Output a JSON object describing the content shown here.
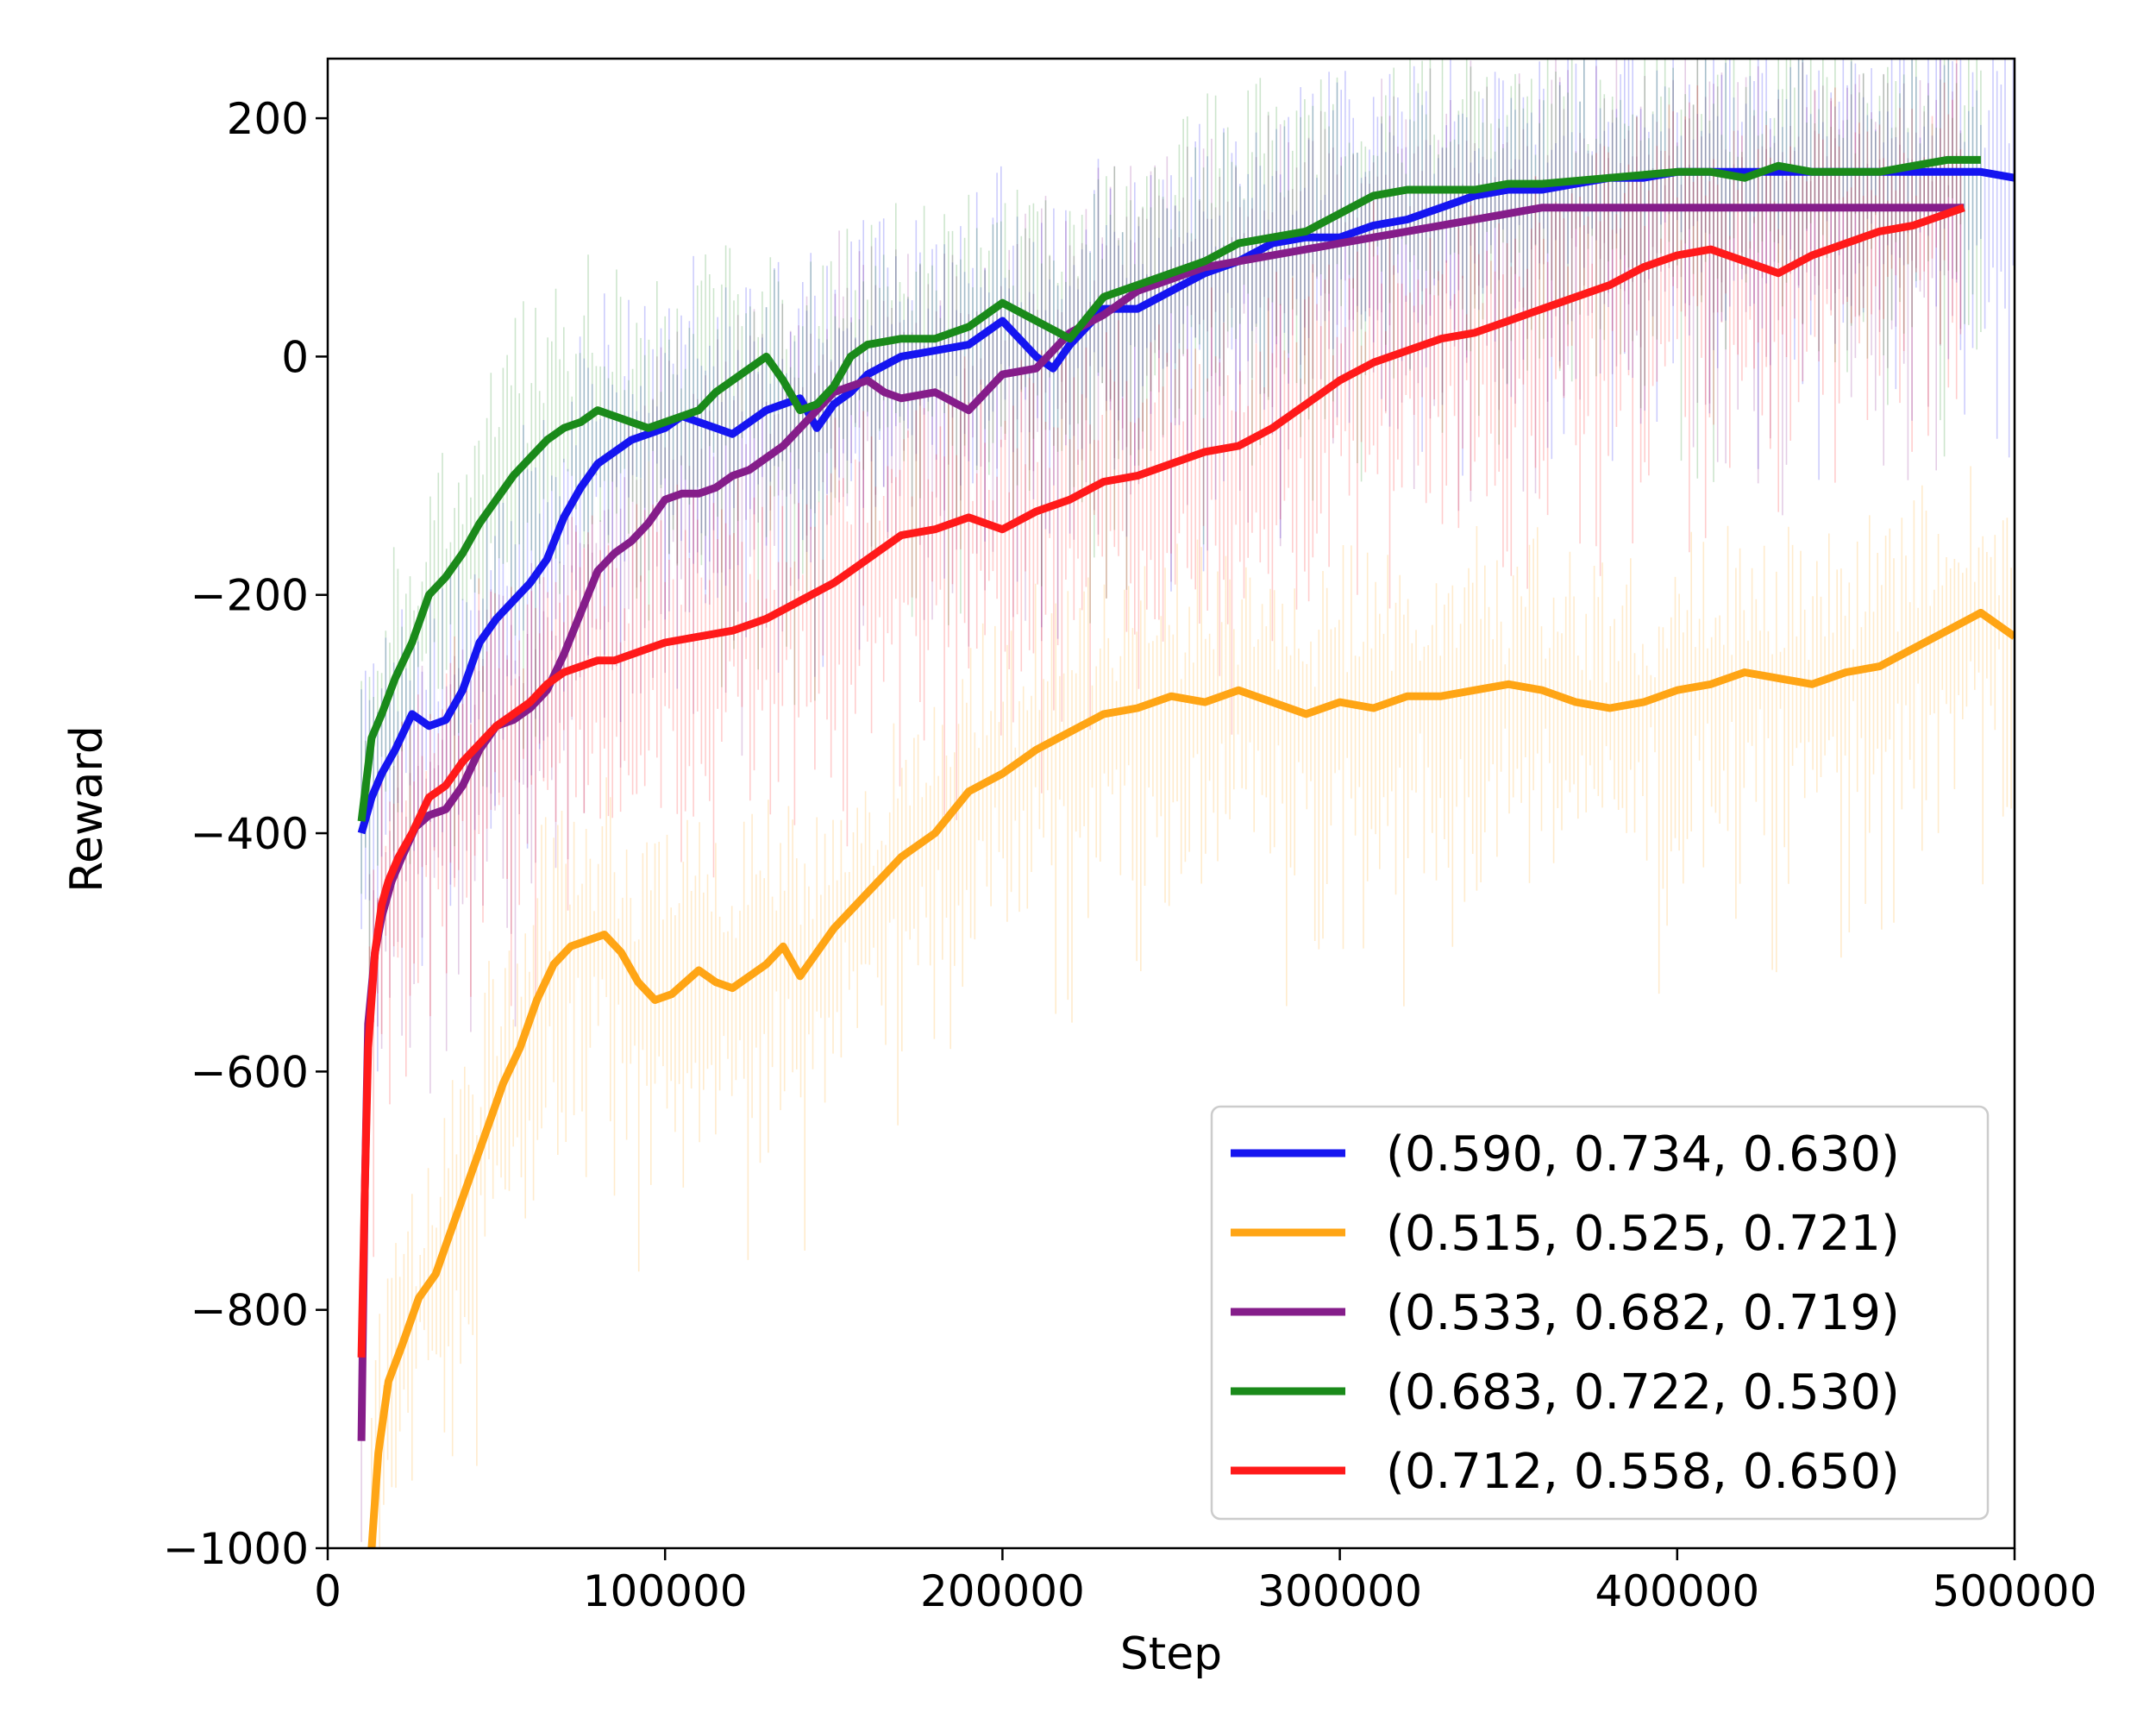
{
  "chart_data": {
    "type": "line",
    "title": "",
    "xlabel": "Step",
    "ylabel": "Reward",
    "xlim": [
      0,
      500000
    ],
    "ylim": [
      -1000,
      250
    ],
    "x_ticks": [
      0,
      100000,
      200000,
      300000,
      400000,
      500000
    ],
    "x_tick_labels": [
      "0",
      "100000",
      "200000",
      "300000",
      "400000",
      "500000"
    ],
    "y_ticks": [
      -1000,
      -800,
      -600,
      -400,
      -200,
      0,
      200
    ],
    "y_tick_labels": [
      "−1000",
      "−800",
      "−600",
      "−400",
      "−200",
      "0",
      "200"
    ],
    "grid": false,
    "legend_position": "bottom-right",
    "series": [
      {
        "name": "(0.590, 0.734, 0.630)",
        "color": "#1515f0",
        "x": [
          10000,
          13000,
          16000,
          20000,
          25000,
          30000,
          35000,
          40000,
          45000,
          50000,
          55000,
          60000,
          65000,
          70000,
          75000,
          80000,
          85000,
          90000,
          95000,
          100000,
          105000,
          110000,
          115000,
          120000,
          125000,
          130000,
          140000,
          145000,
          150000,
          155000,
          160000,
          170000,
          180000,
          190000,
          200000,
          205000,
          210000,
          215000,
          220000,
          230000,
          240000,
          250000,
          260000,
          270000,
          280000,
          290000,
          300000,
          310000,
          320000,
          330000,
          340000,
          350000,
          360000,
          370000,
          380000,
          390000,
          400000,
          420000,
          440000,
          460000,
          480000,
          490000,
          500000
        ],
        "y": [
          -400,
          -370,
          -350,
          -330,
          -300,
          -310,
          -305,
          -280,
          -240,
          -220,
          -205,
          -190,
          -170,
          -135,
          -110,
          -90,
          -80,
          -70,
          -65,
          -60,
          -50,
          -55,
          -60,
          -65,
          -55,
          -45,
          -35,
          -60,
          -40,
          -30,
          -15,
          0,
          5,
          10,
          30,
          15,
          0,
          -10,
          10,
          40,
          40,
          55,
          70,
          80,
          95,
          100,
          100,
          110,
          115,
          125,
          135,
          140,
          140,
          145,
          150,
          150,
          155,
          155,
          155,
          155,
          155,
          155,
          150
        ]
      },
      {
        "name": "(0.515, 0.525, 0.721)",
        "color": "#ffa515",
        "x": [
          13000,
          15000,
          18000,
          22000,
          27000,
          32000,
          37000,
          42000,
          47000,
          52000,
          57000,
          62000,
          67000,
          72000,
          77000,
          82000,
          87000,
          92000,
          97000,
          102000,
          110000,
          115000,
          120000,
          130000,
          135000,
          140000,
          150000,
          160000,
          170000,
          180000,
          190000,
          200000,
          210000,
          220000,
          230000,
          240000,
          250000,
          260000,
          270000,
          280000,
          290000,
          300000,
          310000,
          320000,
          330000,
          340000,
          350000,
          360000,
          370000,
          380000,
          390000,
          400000,
          410000,
          420000,
          430000,
          440000,
          450000,
          460000,
          470000,
          480000,
          490000,
          500000
        ],
        "y": [
          -1000,
          -920,
          -860,
          -830,
          -790,
          -770,
          -730,
          -690,
          -650,
          -610,
          -580,
          -540,
          -510,
          -495,
          -490,
          -485,
          -500,
          -525,
          -540,
          -535,
          -515,
          -525,
          -530,
          -510,
          -495,
          -520,
          -480,
          -450,
          -420,
          -400,
          -365,
          -350,
          -330,
          -315,
          -300,
          -295,
          -285,
          -290,
          -280,
          -290,
          -300,
          -290,
          -295,
          -285,
          -285,
          -280,
          -275,
          -280,
          -290,
          -295,
          -290,
          -280,
          -275,
          -265,
          -270,
          -275,
          -265,
          -260,
          -245,
          -230,
          -215,
          -235
        ]
      },
      {
        "name": "(0.533, 0.682, 0.719)",
        "color": "#851d8a",
        "x": [
          10000,
          11000,
          12000,
          14000,
          16000,
          19000,
          22000,
          26000,
          30000,
          35000,
          40000,
          45000,
          50000,
          55000,
          60000,
          65000,
          70000,
          75000,
          80000,
          85000,
          90000,
          95000,
          100000,
          105000,
          110000,
          115000,
          120000,
          125000,
          130000,
          135000,
          140000,
          145000,
          150000,
          155000,
          160000,
          165000,
          170000,
          180000,
          190000,
          200000,
          210000,
          220000,
          230000,
          240000,
          250000,
          260000,
          270000,
          280000,
          290000,
          300000,
          310000,
          320000,
          330000,
          340000,
          350000,
          360000,
          380000,
          400000,
          420000,
          440000,
          460000,
          480000,
          485000
        ],
        "y": [
          -910,
          -700,
          -560,
          -500,
          -470,
          -440,
          -420,
          -395,
          -385,
          -380,
          -360,
          -330,
          -310,
          -305,
          -295,
          -280,
          -250,
          -215,
          -180,
          -165,
          -155,
          -140,
          -120,
          -115,
          -115,
          -110,
          -100,
          -95,
          -85,
          -75,
          -60,
          -45,
          -30,
          -25,
          -20,
          -30,
          -35,
          -30,
          -45,
          -15,
          -10,
          20,
          35,
          55,
          65,
          75,
          80,
          85,
          90,
          95,
          100,
          105,
          110,
          115,
          120,
          125,
          125,
          125,
          125,
          125,
          125,
          125,
          125
        ]
      },
      {
        "name": "(0.683, 0.722, 0.530)",
        "color": "#1a8a1a",
        "x": [
          10000,
          13000,
          16000,
          20000,
          25000,
          30000,
          35000,
          40000,
          45000,
          50000,
          55000,
          60000,
          65000,
          70000,
          75000,
          80000,
          85000,
          90000,
          95000,
          100000,
          105000,
          110000,
          115000,
          120000,
          125000,
          130000,
          135000,
          140000,
          145000,
          150000,
          155000,
          160000,
          170000,
          180000,
          190000,
          200000,
          210000,
          220000,
          230000,
          240000,
          250000,
          260000,
          270000,
          280000,
          290000,
          300000,
          310000,
          320000,
          330000,
          340000,
          350000,
          360000,
          380000,
          400000,
          410000,
          420000,
          430000,
          440000,
          450000,
          460000,
          470000,
          480000,
          490000
        ],
        "y": [
          -390,
          -320,
          -300,
          -270,
          -240,
          -200,
          -185,
          -165,
          -140,
          -120,
          -100,
          -85,
          -70,
          -60,
          -55,
          -45,
          -50,
          -55,
          -60,
          -55,
          -50,
          -45,
          -30,
          -20,
          -10,
          0,
          -20,
          -45,
          -40,
          -25,
          0,
          10,
          15,
          15,
          25,
          45,
          30,
          15,
          50,
          60,
          70,
          80,
          95,
          100,
          105,
          120,
          135,
          140,
          140,
          140,
          145,
          145,
          150,
          155,
          155,
          150,
          160,
          155,
          155,
          155,
          160,
          165,
          165
        ]
      },
      {
        "name": "(0.712, 0.558, 0.650)",
        "color": "#ff1a1a",
        "x": [
          10000,
          11000,
          12000,
          14000,
          16000,
          18000,
          21000,
          25000,
          30000,
          35000,
          40000,
          45000,
          50000,
          55000,
          60000,
          65000,
          70000,
          75000,
          80000,
          85000,
          90000,
          95000,
          100000,
          110000,
          120000,
          130000,
          140000,
          150000,
          160000,
          170000,
          180000,
          190000,
          200000,
          210000,
          220000,
          230000,
          240000,
          250000,
          260000,
          270000,
          280000,
          290000,
          300000,
          310000,
          320000,
          330000,
          340000,
          350000,
          360000,
          370000,
          380000,
          390000,
          400000,
          410000,
          420000,
          430000,
          440000,
          450000,
          460000,
          470000,
          480000,
          485000
        ],
        "y": [
          -840,
          -700,
          -580,
          -500,
          -460,
          -440,
          -420,
          -400,
          -370,
          -360,
          -340,
          -325,
          -310,
          -300,
          -290,
          -275,
          -265,
          -260,
          -255,
          -255,
          -250,
          -245,
          -240,
          -235,
          -230,
          -220,
          -205,
          -190,
          -170,
          -150,
          -145,
          -135,
          -145,
          -130,
          -120,
          -105,
          -100,
          -90,
          -80,
          -75,
          -60,
          -40,
          -20,
          -5,
          5,
          15,
          20,
          30,
          40,
          50,
          60,
          75,
          85,
          90,
          80,
          70,
          85,
          95,
          105,
          110,
          120,
          125
        ]
      }
    ]
  }
}
